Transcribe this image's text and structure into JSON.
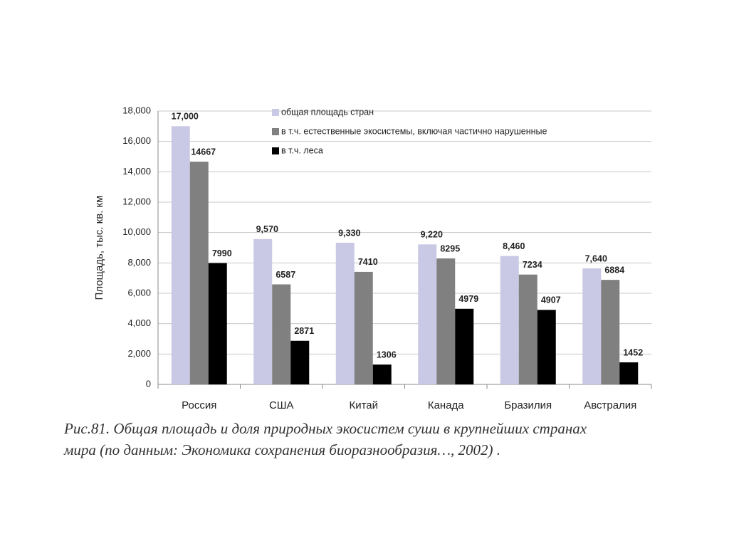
{
  "chart_data": {
    "type": "bar",
    "y_label": "Площадь, тыс. кв. км",
    "categories": [
      "Россия",
      "США",
      "Китай",
      "Канада",
      "Бразилия",
      "Австралия"
    ],
    "series": [
      {
        "name": "общая площадь стран",
        "color": "#c9c9e6",
        "values": [
          17000,
          9570,
          9330,
          9220,
          8460,
          7640
        ],
        "value_labels": [
          "17,000",
          "9,570",
          "9,330",
          "9,220",
          "8,460",
          "7,640"
        ]
      },
      {
        "name": "в т.ч. естественные экосистемы, включая частично нарушенные",
        "color": "#808080",
        "values": [
          14667,
          6587,
          7410,
          8295,
          7234,
          6884
        ]
      },
      {
        "name": "в т.ч. леса",
        "color": "#000000",
        "values": [
          7990,
          2871,
          1306,
          4979,
          4907,
          1452
        ]
      }
    ],
    "ylim": [
      0,
      18000
    ],
    "yticks": [
      0,
      {
        "value": 2000,
        "label": "2,000"
      },
      {
        "value": 4000,
        "label": "4,000"
      },
      {
        "value": 6000,
        "label": "6,000"
      },
      {
        "value": 8000,
        "label": "8,000"
      },
      {
        "value": 10000,
        "label": "10,000"
      },
      {
        "value": 12000,
        "label": "12,000"
      },
      {
        "value": 14000,
        "label": "14,000"
      },
      {
        "value": 16000,
        "label": "16,000"
      },
      {
        "value": 18000,
        "label": "18,000"
      }
    ],
    "grid": true,
    "caption": [
      "Рис.81. Общая площадь и доля природных экосистем суши в крупнейших странах",
      "мира (по данным: Экономика сохранения биоразнообразия…, 2002) ."
    ]
  }
}
